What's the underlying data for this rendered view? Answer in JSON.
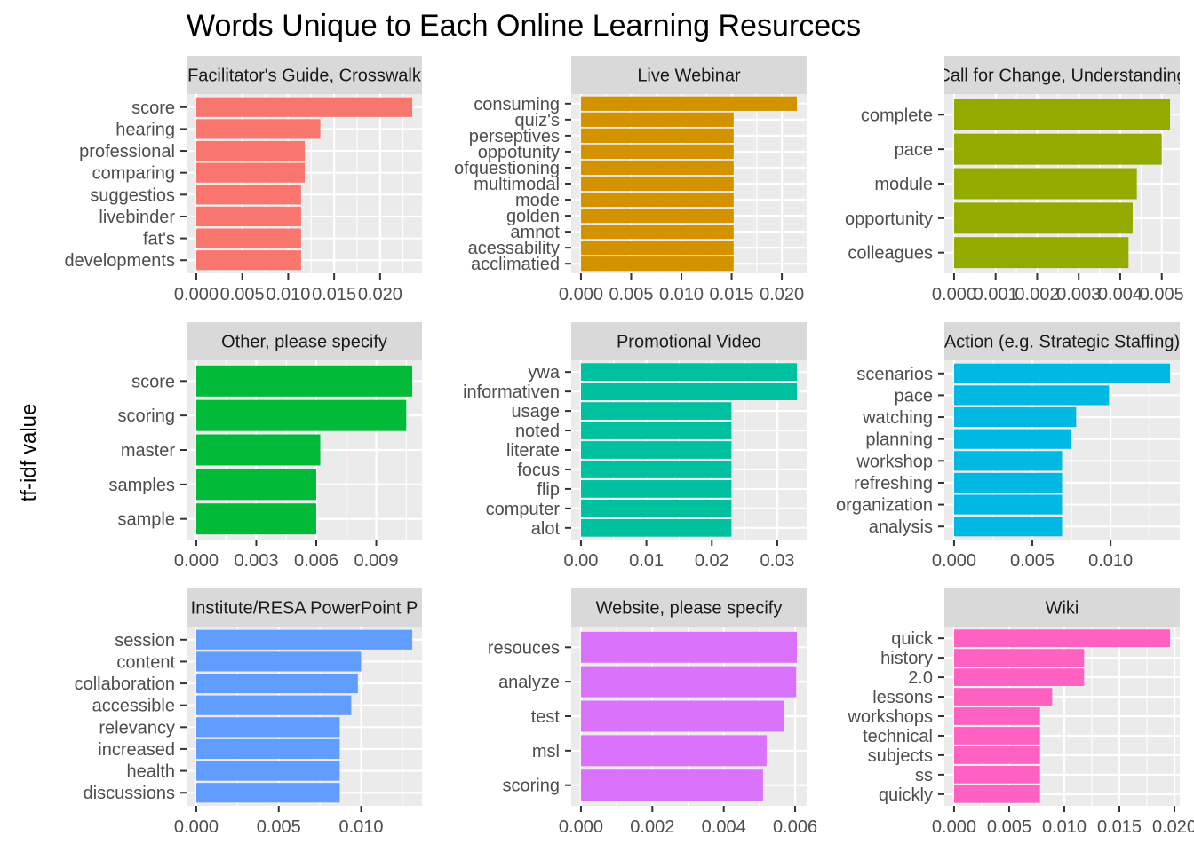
{
  "chart_data": {
    "type": "bar",
    "orientation": "horizontal",
    "title": "Words Unique to Each Online Learning Resurcecs",
    "ylabel": "tf-idf value",
    "legend": "none",
    "grid": true,
    "facets": [
      {
        "label": "Facilitator's Guide, Crosswalk",
        "color": "#F8766D",
        "xlim": [
          0,
          0.0235
        ],
        "ticks": [
          0,
          0.005,
          0.01,
          0.015,
          0.02
        ],
        "tick_labels": [
          "0.000",
          "0.005",
          "0.010",
          "0.015",
          "0.020"
        ],
        "categories": [
          "score",
          "hearing",
          "professional",
          "comparing",
          "suggestios",
          "livebinder",
          "fat's",
          "developments"
        ],
        "values": [
          0.0235,
          0.0135,
          0.0118,
          0.0118,
          0.0114,
          0.0114,
          0.0114,
          0.0114
        ]
      },
      {
        "label": "Live Webinar",
        "color": "#D39200",
        "xlim": [
          0,
          0.0215
        ],
        "ticks": [
          0,
          0.005,
          0.01,
          0.015,
          0.02
        ],
        "tick_labels": [
          "0.000",
          "0.005",
          "0.010",
          "0.015",
          "0.020"
        ],
        "categories": [
          "consuming",
          "quiz's",
          "perseptives",
          "oppotunity",
          "ofquestioning",
          "multimodal",
          "mode",
          "golden",
          "amnot",
          "acessability",
          "acclimatied"
        ],
        "values": [
          0.0215,
          0.0152,
          0.0152,
          0.0152,
          0.0152,
          0.0152,
          0.0152,
          0.0152,
          0.0152,
          0.0152,
          0.0152
        ]
      },
      {
        "label": "Call for Change, Understanding",
        "color": "#93AA00",
        "xlim": [
          0,
          0.0052
        ],
        "ticks": [
          0,
          0.001,
          0.002,
          0.003,
          0.004,
          0.005
        ],
        "tick_labels": [
          "0.000",
          "0.001",
          "0.002",
          "0.003",
          "0.004",
          "0.005"
        ],
        "categories": [
          "complete",
          "pace",
          "module",
          "opportunity",
          "colleagues"
        ],
        "values": [
          0.0052,
          0.005,
          0.0044,
          0.0043,
          0.0042
        ]
      },
      {
        "label": "Other, please specify",
        "color": "#00BA38",
        "xlim": [
          0,
          0.0108
        ],
        "ticks": [
          0,
          0.003,
          0.006,
          0.009
        ],
        "tick_labels": [
          "0.000",
          "0.003",
          "0.006",
          "0.009"
        ],
        "categories": [
          "score",
          "scoring",
          "master",
          "samples",
          "sample"
        ],
        "values": [
          0.0108,
          0.0105,
          0.0062,
          0.006,
          0.006
        ]
      },
      {
        "label": "Promotional Video",
        "color": "#00C19F",
        "xlim": [
          0,
          0.033
        ],
        "ticks": [
          0,
          0.01,
          0.02,
          0.03
        ],
        "tick_labels": [
          "0.00",
          "0.01",
          "0.02",
          "0.03"
        ],
        "categories": [
          "ywa",
          "informativen",
          "usage",
          "noted",
          "literate",
          "focus",
          "flip",
          "computer",
          "alot"
        ],
        "values": [
          0.033,
          0.033,
          0.023,
          0.023,
          0.023,
          0.023,
          0.023,
          0.023,
          0.023
        ]
      },
      {
        "label": "Action (e.g. Strategic Staffing)",
        "color": "#00B9E3",
        "xlim": [
          0,
          0.0138
        ],
        "ticks": [
          0,
          0.005,
          0.01
        ],
        "tick_labels": [
          "0.000",
          "0.005",
          "0.010"
        ],
        "categories": [
          "scenarios",
          "pace",
          "watching",
          "planning",
          "workshop",
          "refreshing",
          "organization",
          "analysis"
        ],
        "values": [
          0.0138,
          0.0099,
          0.0078,
          0.0075,
          0.0069,
          0.0069,
          0.0069,
          0.0069
        ]
      },
      {
        "label": "Institute/RESA PowerPoint P",
        "color": "#619CFF",
        "xlim": [
          0,
          0.0131
        ],
        "ticks": [
          0,
          0.005,
          0.01
        ],
        "tick_labels": [
          "0.000",
          "0.005",
          "0.010"
        ],
        "categories": [
          "session",
          "content",
          "collaboration",
          "accessible",
          "relevancy",
          "increased",
          "health",
          "discussions"
        ],
        "values": [
          0.0131,
          0.01,
          0.0098,
          0.0094,
          0.0087,
          0.0087,
          0.0087,
          0.0087
        ]
      },
      {
        "label": "Website, please specify",
        "color": "#DB72FB",
        "xlim": [
          0,
          0.00605
        ],
        "ticks": [
          0,
          0.002,
          0.004,
          0.006
        ],
        "tick_labels": [
          "0.000",
          "0.002",
          "0.004",
          "0.006"
        ],
        "categories": [
          "resouces",
          "analyze",
          "test",
          "msl",
          "scoring"
        ],
        "values": [
          0.00605,
          0.00603,
          0.0057,
          0.0052,
          0.0051
        ]
      },
      {
        "label": "Wiki",
        "color": "#FF61C3",
        "xlim": [
          0,
          0.0196
        ],
        "ticks": [
          0,
          0.005,
          0.01,
          0.015,
          0.02
        ],
        "tick_labels": [
          "0.000",
          "0.005",
          "0.010",
          "0.015",
          "0.020"
        ],
        "categories": [
          "quick",
          "history",
          "2.0",
          "lessons",
          "workshops",
          "technical",
          "subjects",
          "ss",
          "quickly"
        ],
        "values": [
          0.0196,
          0.0118,
          0.0118,
          0.0089,
          0.0078,
          0.0078,
          0.0078,
          0.0078,
          0.0078
        ]
      }
    ]
  }
}
